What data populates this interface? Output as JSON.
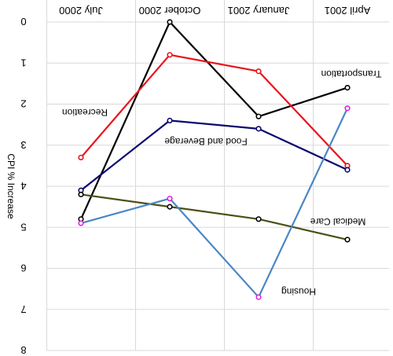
{
  "chart_data": {
    "type": "line",
    "orientation": "flipped-180",
    "categories": [
      "July 2000",
      "October 2000",
      "January 2001",
      "April 2001"
    ],
    "ylabel": "CPI % Increase",
    "ylim": [
      0,
      8
    ],
    "yticks": [
      "0",
      "1",
      "2",
      "3",
      "4",
      "5",
      "6",
      "7",
      "8"
    ],
    "grid": true,
    "series": [
      {
        "name": "Transportation",
        "color": "#000000",
        "marker_color": "#000000",
        "values": [
          4.8,
          0.0,
          2.3,
          1.6
        ]
      },
      {
        "name": "Recreation",
        "color": "#e8141b",
        "marker_color": "#e8141b",
        "values": [
          3.3,
          0.8,
          1.2,
          3.5
        ]
      },
      {
        "name": "Food and Beverage",
        "color": "#0a0a6e",
        "marker_color": "#0a0a6e",
        "values": [
          4.1,
          2.4,
          2.6,
          3.6
        ]
      },
      {
        "name": "Medical Care",
        "color": "#4b5016",
        "marker_color": "#000000",
        "values": [
          4.2,
          4.5,
          4.8,
          5.3
        ]
      },
      {
        "name": "Housing",
        "color": "#4a86c5",
        "marker_color": "#e020e0",
        "values": [
          4.9,
          4.3,
          6.7,
          2.1
        ]
      }
    ]
  }
}
